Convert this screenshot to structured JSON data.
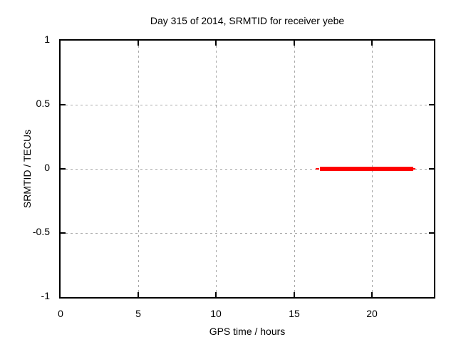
{
  "chart_data": {
    "type": "line",
    "title": "Day 315 of 2014, SRMTID for receiver yebe",
    "xlabel": "GPS time / hours",
    "ylabel": "SRMTID / TECUs",
    "xlim": [
      0,
      24
    ],
    "ylim": [
      -1,
      1
    ],
    "x_ticks": [
      {
        "value": 0,
        "label": "0"
      },
      {
        "value": 5,
        "label": "5"
      },
      {
        "value": 10,
        "label": "10"
      },
      {
        "value": 15,
        "label": "15"
      },
      {
        "value": 20,
        "label": "20"
      }
    ],
    "y_ticks": [
      {
        "value": 1,
        "label": "1"
      },
      {
        "value": 0.5,
        "label": "0.5"
      },
      {
        "value": 0,
        "label": "0"
      },
      {
        "value": -0.5,
        "label": "-0.5"
      },
      {
        "value": -1,
        "label": "-1"
      }
    ],
    "grid": {
      "show": true,
      "color": "#a8a8a8",
      "style": "dashed"
    },
    "border_color": "#000000",
    "background": "#ffffff",
    "series": [
      {
        "name": "SRMTID",
        "color": "#ff0000",
        "description": "near-constant value of ~0 TECUs between ~16.4 and ~22.8 GPS hours; no data elsewhere",
        "segments": [
          {
            "x_start": 16.4,
            "x_end": 16.65,
            "y": 0,
            "weight": "thin"
          },
          {
            "x_start": 16.65,
            "x_end": 22.65,
            "y": 0,
            "weight": "thick"
          },
          {
            "x_start": 22.65,
            "x_end": 22.78,
            "y": 0,
            "weight": "thin"
          }
        ]
      }
    ]
  }
}
